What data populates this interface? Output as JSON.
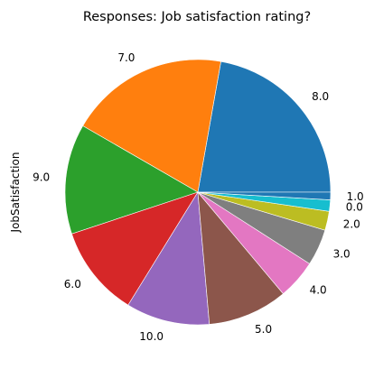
{
  "chart_data": {
    "type": "pie",
    "title": "Responses: Job satisfaction rating?",
    "ylabel": "JobSatisfaction",
    "start_angle_deg": 0,
    "direction": "counterclockwise",
    "slices": [
      {
        "label": "8.0",
        "value": 24.0,
        "color": "#1f77b4"
      },
      {
        "label": "7.0",
        "value": 21.0,
        "color": "#ff7f0e"
      },
      {
        "label": "9.0",
        "value": 14.5,
        "color": "#2ca02c"
      },
      {
        "label": "6.0",
        "value": 12.0,
        "color": "#d62728"
      },
      {
        "label": "10.0",
        "value": 11.0,
        "color": "#9467bd"
      },
      {
        "label": "5.0",
        "value": 10.5,
        "color": "#8c564b"
      },
      {
        "label": "4.0",
        "value": 5.2,
        "color": "#e377c2"
      },
      {
        "label": "3.0",
        "value": 4.8,
        "color": "#7f7f7f"
      },
      {
        "label": "2.0",
        "value": 2.5,
        "color": "#bcbd22"
      },
      {
        "label": "0.0",
        "value": 1.5,
        "color": "#17becf"
      },
      {
        "label": "1.0",
        "value": 1.0,
        "color": "#1f77b4"
      }
    ]
  }
}
